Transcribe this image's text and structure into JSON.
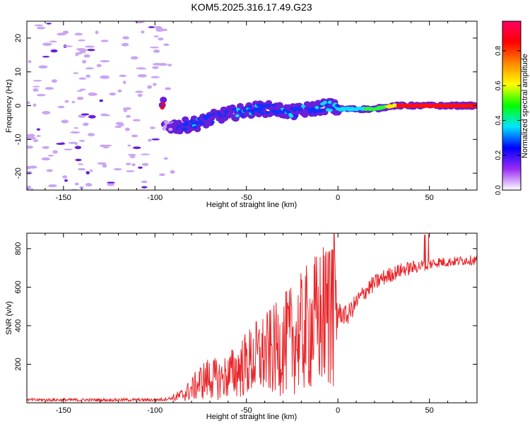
{
  "title": "KOM5.2025.316.17.49.G23",
  "colors": {
    "snr_line": "#e8262a",
    "frame": "#000000",
    "blob_low": "#c9a5f2",
    "blob_mid": "#6a1fd8",
    "blob_high": "#1030ff"
  },
  "chart_data": [
    {
      "type": "heatmap",
      "title": "KOM5.2025.316.17.49.G23",
      "xlabel": "Height of straight line (km)",
      "ylabel": "Frequency (Hz)",
      "xlim": [
        -170,
        76
      ],
      "ylim": [
        -25,
        25
      ],
      "xticks": [
        -150,
        -100,
        -50,
        0,
        50
      ],
      "yticks": [
        -20,
        -10,
        0,
        10,
        20
      ],
      "colorbar": {
        "label": "Normalized spectral amplitude",
        "range": [
          0,
          0.97
        ],
        "ticks": [
          0,
          0.2,
          0.4,
          0.6,
          0.8
        ],
        "colors": [
          "#ffffff",
          "#9a2cf5",
          "#0000ff",
          "#00e5ff",
          "#00ff00",
          "#ffff00",
          "#ff8800",
          "#ff0000",
          "#ff0066"
        ]
      },
      "ridge": {
        "x": [
          -95,
          -85,
          -75,
          -65,
          -55,
          -45,
          -35,
          -25,
          -15,
          -5,
          0,
          10,
          20,
          30,
          40,
          50,
          60,
          70,
          76
        ],
        "freq": [
          -6,
          -6,
          -5,
          -3,
          -2,
          -1,
          -1,
          -2,
          -1,
          0,
          -1,
          -1,
          -1,
          0,
          0,
          0,
          0,
          0,
          0
        ],
        "amplitude": [
          0.1,
          0.25,
          0.3,
          0.25,
          0.3,
          0.3,
          0.25,
          0.3,
          0.3,
          0.3,
          0.35,
          0.45,
          0.55,
          0.7,
          0.85,
          0.9,
          0.92,
          0.95,
          0.95
        ]
      }
    },
    {
      "type": "line",
      "xlabel": "Height of straight line (km)",
      "ylabel": "SNR (v/v)",
      "xlim": [
        -170,
        76
      ],
      "ylim": [
        0,
        880
      ],
      "xticks": [
        -150,
        -100,
        -50,
        0,
        50
      ],
      "yticks": [
        200,
        400,
        600,
        800
      ],
      "series": [
        {
          "name": "SNR",
          "x": [
            -170,
            -150,
            -130,
            -110,
            -100,
            -95,
            -90,
            -85,
            -80,
            -75,
            -70,
            -65,
            -60,
            -55,
            -50,
            -45,
            -40,
            -35,
            -30,
            -25,
            -20,
            -15,
            -10,
            -5,
            -3,
            0,
            5,
            10,
            15,
            20,
            25,
            30,
            35,
            40,
            45,
            50,
            55,
            60,
            65,
            70,
            76
          ],
          "y": [
            15,
            15,
            15,
            15,
            15,
            18,
            25,
            40,
            70,
            110,
            130,
            120,
            140,
            170,
            200,
            230,
            250,
            270,
            300,
            330,
            360,
            400,
            430,
            470,
            520,
            470,
            450,
            520,
            580,
            620,
            650,
            670,
            690,
            700,
            710,
            720,
            730,
            730,
            735,
            740,
            740
          ]
        }
      ]
    }
  ]
}
